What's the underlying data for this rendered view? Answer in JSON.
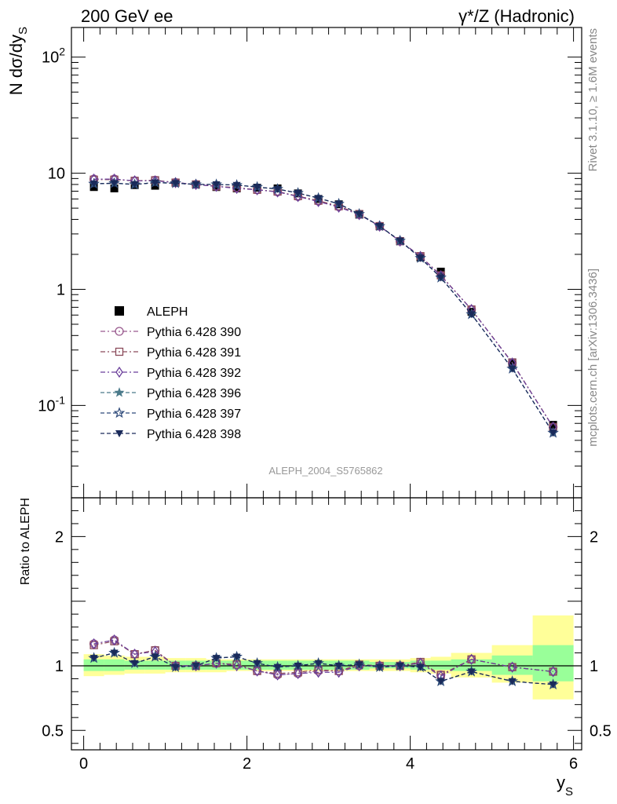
{
  "header": {
    "left_title": "200 GeV ee",
    "right_title": "γ*/Z (Hadronic)"
  },
  "side_labels": {
    "rivet": "Rivet 3.1.10, ≥ 1.6M events",
    "mcplots": "mcplots.cern.ch [arXiv:1306.3436]"
  },
  "watermark": "ALEPH_2004_S5765862",
  "chart_data": [
    {
      "type": "scatter",
      "panel": "main",
      "ylabel": "N dσ/dy_S",
      "xlabel": "y_S",
      "yscale": "log",
      "ylim": [
        0.016,
        180
      ],
      "xlim": [
        -0.15,
        6.1
      ],
      "y_tick_labels": [
        "1",
        "10",
        "10^2",
        "10^-1"
      ],
      "legend_position": "left-center",
      "x": [
        0.125,
        0.375,
        0.625,
        0.875,
        1.125,
        1.375,
        1.625,
        1.875,
        2.125,
        2.375,
        2.625,
        2.875,
        3.125,
        3.375,
        3.625,
        3.875,
        4.125,
        4.375,
        4.75,
        5.25,
        5.75
      ],
      "series": [
        {
          "name": "ALEPH",
          "color": "#000000",
          "marker": "square-filled",
          "dash": "none",
          "values": [
            7.6,
            7.4,
            7.9,
            7.8,
            8.3,
            8.0,
            7.6,
            7.4,
            7.5,
            7.4,
            6.7,
            6.0,
            5.4,
            4.4,
            3.5,
            2.6,
            1.88,
            1.42,
            0.64,
            0.235,
            0.068
          ]
        },
        {
          "name": "Pythia 6.428 390",
          "color": "#9a5b8f",
          "marker": "circle-open",
          "dash": "6,3,2,3",
          "values": [
            8.9,
            8.9,
            8.6,
            8.7,
            8.3,
            8.0,
            7.7,
            7.5,
            7.2,
            6.9,
            6.3,
            5.75,
            5.15,
            4.4,
            3.5,
            2.6,
            1.92,
            1.31,
            0.67,
            0.232,
            0.065
          ]
        },
        {
          "name": "Pythia 6.428 391",
          "color": "#8a4a5a",
          "marker": "square-open",
          "dash": "6,3,2,3",
          "values": [
            8.8,
            8.8,
            8.6,
            8.7,
            8.3,
            8.0,
            7.7,
            7.5,
            7.2,
            6.95,
            6.35,
            5.8,
            5.2,
            4.45,
            3.5,
            2.6,
            1.93,
            1.32,
            0.67,
            0.234,
            0.065
          ]
        },
        {
          "name": "Pythia 6.428 392",
          "color": "#6a3e9a",
          "marker": "diamond-open",
          "dash": "6,3,2,3",
          "values": [
            8.9,
            8.9,
            8.6,
            8.6,
            8.3,
            8.0,
            7.7,
            7.4,
            7.2,
            6.9,
            6.3,
            5.7,
            5.1,
            4.4,
            3.5,
            2.6,
            1.92,
            1.31,
            0.67,
            0.232,
            0.065
          ]
        },
        {
          "name": "Pythia 6.428 396",
          "color": "#4a7a8a",
          "marker": "star-filled",
          "dash": "5,3",
          "values": [
            8.1,
            8.2,
            8.0,
            8.3,
            8.2,
            8.0,
            8.0,
            7.9,
            7.6,
            7.3,
            6.75,
            6.1,
            5.45,
            4.45,
            3.5,
            2.62,
            1.86,
            1.26,
            0.61,
            0.207,
            0.058
          ]
        },
        {
          "name": "Pythia 6.428 397",
          "color": "#2e4a7a",
          "marker": "star-open",
          "dash": "5,3",
          "values": [
            8.1,
            8.2,
            8.0,
            8.3,
            8.2,
            8.0,
            8.0,
            7.9,
            7.6,
            7.3,
            6.75,
            6.1,
            5.45,
            4.45,
            3.5,
            2.62,
            1.86,
            1.26,
            0.61,
            0.207,
            0.058
          ]
        },
        {
          "name": "Pythia 6.428 398",
          "color": "#1a2a5a",
          "marker": "triangle-down-filled",
          "dash": "5,3",
          "values": [
            8.1,
            8.2,
            8.0,
            8.3,
            8.2,
            8.0,
            8.0,
            7.9,
            7.6,
            7.3,
            6.75,
            6.1,
            5.45,
            4.45,
            3.5,
            2.62,
            1.86,
            1.26,
            0.61,
            0.207,
            0.058
          ]
        }
      ]
    },
    {
      "type": "scatter",
      "panel": "ratio",
      "ylabel": "Ratio to ALEPH",
      "xlabel": "y_S",
      "ylim": [
        0.35,
        2.3
      ],
      "xlim": [
        -0.15,
        6.1
      ],
      "y_ticks": [
        0.5,
        1,
        2
      ],
      "x_ticks": [
        0,
        2,
        4,
        6
      ],
      "x": [
        0.125,
        0.375,
        0.625,
        0.875,
        1.125,
        1.375,
        1.625,
        1.875,
        2.125,
        2.375,
        2.625,
        2.875,
        3.125,
        3.375,
        3.625,
        3.875,
        4.125,
        4.375,
        4.75,
        5.25,
        5.75
      ],
      "bands": {
        "edges": [
          0.0,
          0.25,
          0.5,
          0.75,
          1.0,
          1.25,
          1.5,
          1.75,
          2.0,
          2.25,
          2.5,
          2.75,
          3.0,
          3.25,
          3.5,
          3.75,
          4.0,
          4.25,
          4.5,
          5.0,
          5.5,
          6.0
        ],
        "stat_syst_lo": [
          0.92,
          0.93,
          0.94,
          0.94,
          0.95,
          0.95,
          0.95,
          0.96,
          0.96,
          0.96,
          0.96,
          0.96,
          0.96,
          0.96,
          0.96,
          0.96,
          0.95,
          0.94,
          0.91,
          0.87,
          0.74
        ],
        "stat_syst_hi": [
          1.09,
          1.08,
          1.07,
          1.07,
          1.06,
          1.06,
          1.05,
          1.05,
          1.05,
          1.05,
          1.05,
          1.05,
          1.05,
          1.05,
          1.05,
          1.05,
          1.06,
          1.07,
          1.1,
          1.16,
          1.39
        ],
        "stat_lo": [
          0.96,
          0.96,
          0.97,
          0.97,
          0.97,
          0.97,
          0.97,
          0.97,
          0.97,
          0.97,
          0.97,
          0.97,
          0.97,
          0.97,
          0.98,
          0.98,
          0.97,
          0.97,
          0.96,
          0.93,
          0.88
        ],
        "stat_hi": [
          1.05,
          1.05,
          1.04,
          1.04,
          1.04,
          1.04,
          1.04,
          1.04,
          1.04,
          1.04,
          1.04,
          1.04,
          1.04,
          1.04,
          1.03,
          1.03,
          1.04,
          1.04,
          1.05,
          1.08,
          1.16
        ],
        "outer_color": "#ffff99",
        "inner_color": "#99ff99"
      },
      "series": [
        {
          "name": "Pythia 6.428 390",
          "color": "#9a5b8f",
          "marker": "circle-open",
          "dash": "6,3,2,3",
          "values": [
            1.17,
            1.2,
            1.09,
            1.12,
            1.0,
            1.0,
            1.02,
            1.01,
            0.96,
            0.93,
            0.94,
            0.96,
            0.96,
            1.0,
            1.0,
            1.0,
            1.02,
            0.93,
            1.05,
            0.99,
            0.955
          ]
        },
        {
          "name": "Pythia 6.428 391",
          "color": "#8a4a5a",
          "marker": "square-open",
          "dash": "6,3,2,3",
          "values": [
            1.16,
            1.19,
            1.09,
            1.12,
            1.0,
            1.0,
            1.02,
            1.01,
            0.96,
            0.94,
            0.95,
            0.97,
            0.96,
            1.01,
            1.0,
            1.0,
            1.03,
            0.93,
            1.05,
            0.99,
            0.955
          ]
        },
        {
          "name": "Pythia 6.428 392",
          "color": "#6a3e9a",
          "marker": "diamond-open",
          "dash": "6,3,2,3",
          "values": [
            1.17,
            1.2,
            1.09,
            1.11,
            1.0,
            1.0,
            1.02,
            1.0,
            0.96,
            0.93,
            0.94,
            0.95,
            0.95,
            1.0,
            1.0,
            1.0,
            1.02,
            0.92,
            1.05,
            0.99,
            0.955
          ]
        },
        {
          "name": "Pythia 6.428 396",
          "color": "#4a7a8a",
          "marker": "star-filled",
          "dash": "5,3",
          "values": [
            1.06,
            1.1,
            1.02,
            1.07,
            0.99,
            1.0,
            1.06,
            1.07,
            1.02,
            0.99,
            1.0,
            1.02,
            1.0,
            1.01,
            0.99,
            1.0,
            0.99,
            0.88,
            0.955,
            0.88,
            0.855
          ]
        },
        {
          "name": "Pythia 6.428 397",
          "color": "#2e4a7a",
          "marker": "star-open",
          "dash": "5,3",
          "values": [
            1.06,
            1.1,
            1.02,
            1.07,
            0.99,
            1.0,
            1.06,
            1.07,
            1.02,
            0.99,
            1.0,
            1.02,
            1.0,
            1.01,
            0.99,
            1.0,
            0.99,
            0.88,
            0.955,
            0.88,
            0.855
          ]
        },
        {
          "name": "Pythia 6.428 398",
          "color": "#1a2a5a",
          "marker": "triangle-down-filled",
          "dash": "5,3",
          "values": [
            1.06,
            1.1,
            1.02,
            1.07,
            0.99,
            1.0,
            1.06,
            1.07,
            1.02,
            0.99,
            1.0,
            1.02,
            1.0,
            1.01,
            0.99,
            1.0,
            0.99,
            0.88,
            0.955,
            0.88,
            0.855
          ]
        }
      ]
    }
  ]
}
